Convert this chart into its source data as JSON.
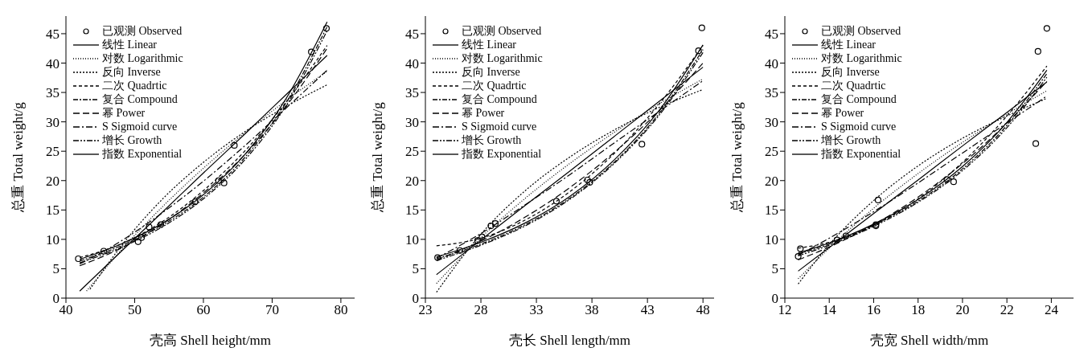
{
  "chart_data": [
    {
      "type": "line",
      "xlabel": "壳高 Shell height/mm",
      "ylabel": "总重 Total weight/g",
      "xlim": [
        40,
        82
      ],
      "ylim": [
        0,
        48
      ],
      "xticks": [
        40,
        50,
        60,
        70,
        80
      ],
      "yticks": [
        0,
        5,
        10,
        15,
        20,
        25,
        30,
        35,
        40,
        45
      ],
      "legend": "top left",
      "series": [
        {
          "name": "已观测 Observed",
          "type": "scatter",
          "marker": "circle",
          "color": "#000000",
          "x": [
            41.8,
            45.5,
            50.5,
            51.0,
            52.1,
            53.8,
            58.8,
            62.2,
            63.0,
            64.5,
            75.7,
            77.9
          ],
          "values": [
            6.7,
            8.0,
            9.6,
            10.3,
            12.1,
            12.5,
            16.4,
            20.0,
            19.6,
            26.0,
            41.9,
            45.9
          ]
        },
        {
          "name": "线性 Linear",
          "line_style": "solid",
          "color": "#000000",
          "x": [
            42,
            48,
            54,
            60,
            66,
            72,
            78
          ],
          "values": [
            1.2,
            7.9,
            14.6,
            21.3,
            27.9,
            34.6,
            41.3
          ]
        },
        {
          "name": "对数 Logarithmic",
          "line_style": "dotted",
          "color": "#000000",
          "x": [
            43,
            48,
            54,
            60,
            66,
            72,
            78
          ],
          "values": [
            1.2,
            8.1,
            15.5,
            22.1,
            28.1,
            33.6,
            38.6
          ]
        },
        {
          "name": "反向 Inverse",
          "line_style": "dashed",
          "color": "#000000",
          "x": [
            43.5,
            48,
            54,
            60,
            66,
            72,
            78
          ],
          "values": [
            1.5,
            8.8,
            16.8,
            23.1,
            28.3,
            32.6,
            36.3
          ]
        },
        {
          "name": "二次 Quadrtic",
          "line_style": "dashed",
          "color": "#000000",
          "x": [
            42,
            48,
            54,
            60,
            66,
            72,
            78
          ],
          "values": [
            6.9,
            9.2,
            13.0,
            18.3,
            25.0,
            33.3,
            43.0
          ]
        },
        {
          "name": "复合 Compound",
          "line_style": "dashed",
          "color": "#000000",
          "x": [
            42,
            48,
            54,
            60,
            66,
            72,
            78
          ],
          "values": [
            6.3,
            8.9,
            12.4,
            17.2,
            23.9,
            33.2,
            46.2
          ]
        },
        {
          "name": "幂 Power",
          "line_style": "dashed",
          "color": "#000000",
          "x": [
            42,
            48,
            54,
            60,
            66,
            72,
            78
          ],
          "values": [
            5.5,
            8.5,
            12.6,
            17.9,
            24.4,
            32.6,
            42.5
          ]
        },
        {
          "name": "S Sigmoid curve",
          "line_style": "dashed",
          "color": "#000000",
          "x": [
            42,
            48,
            54,
            60,
            66,
            72,
            78
          ],
          "values": [
            5.8,
            9.7,
            14.5,
            19.9,
            25.9,
            32.3,
            38.8
          ]
        },
        {
          "name": "增长 Growth",
          "line_style": "dashed",
          "color": "#000000",
          "x": [
            42,
            48,
            54,
            60,
            66,
            72,
            78
          ],
          "values": [
            6.0,
            8.6,
            12.1,
            16.9,
            23.5,
            32.7,
            45.5
          ]
        },
        {
          "name": "指数 Exponential",
          "line_style": "solid",
          "color": "#000000",
          "x": [
            42,
            48,
            54,
            60,
            66,
            72,
            78
          ],
          "values": [
            6.6,
            9.2,
            12.7,
            17.6,
            24.4,
            33.9,
            47.0
          ]
        }
      ]
    },
    {
      "type": "line",
      "xlabel": "壳长 Shell length/mm",
      "ylabel": "总重 Total weight/g",
      "xlim": [
        23,
        49
      ],
      "ylim": [
        0,
        48
      ],
      "xticks": [
        23,
        28,
        33,
        38,
        43,
        48
      ],
      "yticks": [
        0,
        5,
        10,
        15,
        20,
        25,
        30,
        35,
        40,
        45
      ],
      "legend": "top left",
      "series": [
        {
          "name": "已观测 Observed",
          "type": "scatter",
          "marker": "circle",
          "color": "#000000",
          "x": [
            24.1,
            26.1,
            27.7,
            28.1,
            28.9,
            29.3,
            34.8,
            37.6,
            37.8,
            42.5,
            47.6,
            47.9
          ],
          "values": [
            6.9,
            8.1,
            9.8,
            10.4,
            12.3,
            12.7,
            16.5,
            20.1,
            19.7,
            26.2,
            42.1,
            46.0
          ]
        },
        {
          "name": "线性 Linear",
          "line_style": "solid",
          "color": "#000000",
          "x": [
            24,
            28,
            32,
            36,
            40,
            44,
            48
          ],
          "values": [
            4.0,
            9.9,
            15.8,
            21.6,
            27.5,
            33.4,
            39.3
          ]
        },
        {
          "name": "对数 Logarithmic",
          "line_style": "dotted",
          "color": "#000000",
          "x": [
            24,
            28,
            32,
            36,
            40,
            44,
            48
          ],
          "values": [
            2.5,
            10.3,
            17.0,
            22.9,
            28.2,
            33.0,
            37.3
          ]
        },
        {
          "name": "反向 Inverse",
          "line_style": "dashed",
          "color": "#000000",
          "x": [
            24,
            28,
            32,
            36,
            40,
            44,
            48
          ],
          "values": [
            1.0,
            10.9,
            18.3,
            24.0,
            28.6,
            32.4,
            35.5
          ]
        },
        {
          "name": "二次 Quadrtic",
          "line_style": "dashed",
          "color": "#000000",
          "x": [
            24,
            28,
            32,
            36,
            40,
            44,
            48
          ],
          "values": [
            8.9,
            10.2,
            13.3,
            18.1,
            24.6,
            32.9,
            43.0
          ]
        },
        {
          "name": "复合 Compound",
          "line_style": "dashed",
          "color": "#000000",
          "x": [
            24,
            28,
            32,
            36,
            40,
            44,
            48
          ],
          "values": [
            6.7,
            9.2,
            12.5,
            17.0,
            23.1,
            31.3,
            42.3
          ]
        },
        {
          "name": "幂 Power",
          "line_style": "dashed",
          "color": "#000000",
          "x": [
            24,
            28,
            32,
            36,
            40,
            44,
            48
          ],
          "values": [
            6.5,
            9.7,
            13.8,
            18.8,
            24.8,
            31.8,
            40.0
          ]
        },
        {
          "name": "S Sigmoid curve",
          "line_style": "dashed",
          "color": "#000000",
          "x": [
            24,
            28,
            32,
            36,
            40,
            44,
            48
          ],
          "values": [
            6.8,
            11.0,
            15.9,
            21.0,
            26.4,
            31.7,
            37.0
          ]
        },
        {
          "name": "增长 Growth",
          "line_style": "dashed",
          "color": "#000000",
          "x": [
            24,
            28,
            32,
            36,
            40,
            44,
            48
          ],
          "values": [
            6.4,
            9.0,
            12.3,
            16.8,
            22.9,
            31.0,
            41.8
          ]
        },
        {
          "name": "指数 Exponential",
          "line_style": "solid",
          "color": "#000000",
          "x": [
            24,
            28,
            32,
            36,
            40,
            44,
            48
          ],
          "values": [
            7.0,
            9.5,
            12.8,
            17.3,
            23.5,
            31.8,
            43.1
          ]
        }
      ]
    },
    {
      "type": "line",
      "xlabel": "壳宽 Shell width/mm",
      "ylabel": "总重 Total weight/g",
      "xlim": [
        12,
        25
      ],
      "ylim": [
        0,
        48
      ],
      "xticks": [
        12,
        14,
        16,
        18,
        20,
        22,
        24
      ],
      "yticks": [
        0,
        5,
        10,
        15,
        20,
        25,
        30,
        35,
        40,
        45
      ],
      "legend": "top left",
      "series": [
        {
          "name": "已观测 Observed",
          "type": "scatter",
          "marker": "circle",
          "color": "#000000",
          "x": [
            12.6,
            12.7,
            14.35,
            14.75,
            16.1,
            16.1,
            16.2,
            19.3,
            19.6,
            23.3,
            23.4,
            23.8
          ],
          "values": [
            7.1,
            8.4,
            9.9,
            10.6,
            12.5,
            12.3,
            16.7,
            20.2,
            19.8,
            26.3,
            42.0,
            45.9
          ]
        },
        {
          "name": "线性 Linear",
          "line_style": "solid",
          "color": "#000000",
          "x": [
            12.6,
            14,
            16,
            18,
            20,
            22,
            23.8
          ],
          "values": [
            4.6,
            8.6,
            14.4,
            20.1,
            25.9,
            31.6,
            36.8
          ]
        },
        {
          "name": "对数 Logarithmic",
          "line_style": "dotted",
          "color": "#000000",
          "x": [
            12.6,
            14,
            16,
            18,
            20,
            22,
            23.8
          ],
          "values": [
            3.3,
            8.5,
            15.3,
            21.2,
            26.5,
            31.3,
            35.3
          ]
        },
        {
          "name": "反向 Inverse",
          "line_style": "dashed",
          "color": "#000000",
          "x": [
            12.6,
            14,
            16,
            18,
            20,
            22,
            23.8
          ],
          "values": [
            2.4,
            9.1,
            16.6,
            22.5,
            27.2,
            31.0,
            34.0
          ]
        },
        {
          "name": "二次 Quadrtic",
          "line_style": "dashed",
          "color": "#000000",
          "x": [
            12.6,
            14,
            16,
            18,
            20,
            22,
            23.8
          ],
          "values": [
            8.5,
            9.5,
            12.4,
            16.9,
            23.1,
            31.0,
            39.5
          ]
        },
        {
          "name": "复合 Compound",
          "line_style": "dashed",
          "color": "#000000",
          "x": [
            12.6,
            14,
            16,
            18,
            20,
            22,
            23.8
          ],
          "values": [
            7.5,
            9.2,
            12.4,
            16.5,
            22.0,
            29.4,
            38.2
          ]
        },
        {
          "name": "幂 Power",
          "line_style": "dashed",
          "color": "#000000",
          "x": [
            12.6,
            14,
            16,
            18,
            20,
            22,
            23.8
          ],
          "values": [
            6.5,
            8.7,
            12.5,
            17.2,
            22.9,
            29.8,
            36.9
          ]
        },
        {
          "name": "S Sigmoid curve",
          "line_style": "dashed",
          "color": "#000000",
          "x": [
            12.6,
            14,
            16,
            18,
            20,
            22,
            23.8
          ],
          "values": [
            7.3,
            10.2,
            14.7,
            19.6,
            24.7,
            29.8,
            34.4
          ]
        },
        {
          "name": "增长 Growth",
          "line_style": "dashed",
          "color": "#000000",
          "x": [
            12.6,
            14,
            16,
            18,
            20,
            22,
            23.8
          ],
          "values": [
            7.2,
            9.0,
            12.2,
            16.3,
            21.7,
            29.0,
            37.6
          ]
        },
        {
          "name": "指数 Exponential",
          "line_style": "solid",
          "color": "#000000",
          "x": [
            12.6,
            14,
            16,
            18,
            20,
            22,
            23.8
          ],
          "values": [
            7.7,
            9.4,
            12.6,
            16.8,
            22.4,
            29.9,
            38.8
          ]
        }
      ]
    }
  ]
}
